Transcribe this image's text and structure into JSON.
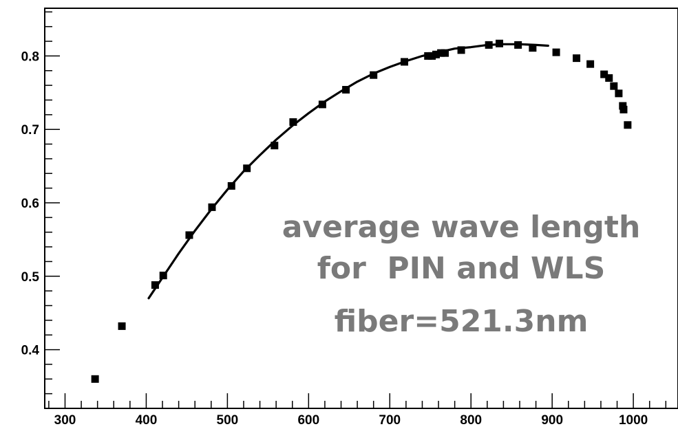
{
  "chart_data": {
    "type": "scatter",
    "title": "",
    "xlabel": "",
    "ylabel": "",
    "xlim": [
      275,
      1055
    ],
    "ylim": [
      0.32,
      0.865
    ],
    "x_ticks": [
      300,
      400,
      500,
      600,
      700,
      800,
      900,
      1000
    ],
    "x_tick_labels": [
      "300",
      "400",
      "500",
      "600",
      "700",
      "800",
      "900",
      "1000"
    ],
    "y_ticks": [
      0.4,
      0.5,
      0.6,
      0.7,
      0.8
    ],
    "y_tick_labels": [
      "0.4",
      "0.5",
      "0.6",
      "0.7",
      "0.8"
    ],
    "grid": false,
    "annotation": [
      "average wave length",
      "for  PIN and WLS",
      "fiber=521.3nm"
    ],
    "series": [
      {
        "type": "scatter",
        "marker": "square",
        "color": "#000000",
        "x": [
          337,
          370,
          411,
          421,
          453,
          481,
          505,
          524,
          558,
          581,
          617,
          646,
          680,
          718,
          747,
          752,
          757,
          763,
          768,
          788,
          822,
          835,
          858,
          876,
          905,
          930,
          947,
          964,
          970,
          976,
          982,
          987,
          988,
          993
        ],
        "y": [
          0.36,
          0.432,
          0.488,
          0.501,
          0.556,
          0.594,
          0.623,
          0.647,
          0.678,
          0.71,
          0.734,
          0.754,
          0.774,
          0.792,
          0.8,
          0.8,
          0.802,
          0.804,
          0.804,
          0.808,
          0.815,
          0.817,
          0.815,
          0.811,
          0.805,
          0.797,
          0.789,
          0.775,
          0.77,
          0.759,
          0.749,
          0.732,
          0.727,
          0.706
        ]
      },
      {
        "type": "line",
        "color": "#000000",
        "x": [
          403,
          420,
          440,
          460,
          480,
          500,
          520,
          540,
          560,
          580,
          600,
          620,
          640,
          660,
          680,
          700,
          720,
          740,
          760,
          780,
          800,
          820,
          840,
          860,
          880,
          895
        ],
        "y": [
          0.47,
          0.498,
          0.531,
          0.562,
          0.591,
          0.618,
          0.643,
          0.665,
          0.686,
          0.705,
          0.722,
          0.738,
          0.752,
          0.765,
          0.776,
          0.785,
          0.793,
          0.8,
          0.805,
          0.81,
          0.812,
          0.815,
          0.816,
          0.816,
          0.815,
          0.814
        ]
      }
    ]
  }
}
